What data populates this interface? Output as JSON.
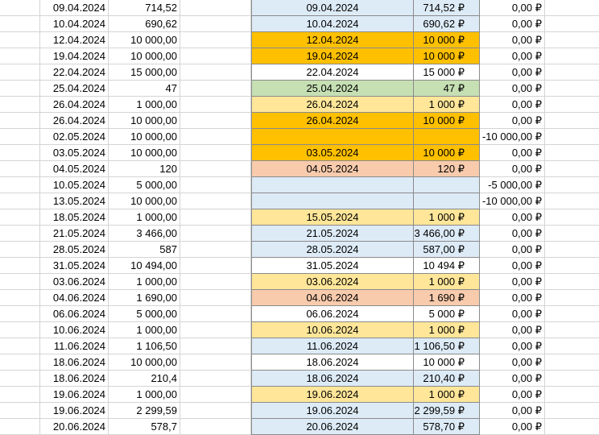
{
  "colors": {
    "blue": "#ddebf7",
    "orange": "#ffc000",
    "yellow": "#ffe699",
    "green": "#c6e0b4",
    "peach": "#f8cbad",
    "white": "#ffffff",
    "gridline": "#d4d4d4"
  },
  "top_partial": {
    "amount": ",",
    "right_date": "",
    "right_amount": "",
    "diff": ","
  },
  "rows": [
    {
      "date": "09.04.2024",
      "amount": "714,52",
      "right_date": "09.04.2024",
      "right_amount": "714,52 ₽",
      "diff": "0,00 ₽",
      "fill": "blue"
    },
    {
      "date": "10.04.2024",
      "amount": "690,62",
      "right_date": "10.04.2024",
      "right_amount": "690,62 ₽",
      "diff": "0,00 ₽",
      "fill": "blue"
    },
    {
      "date": "12.04.2024",
      "amount": "10 000,00",
      "right_date": "12.04.2024",
      "right_amount": "10 000 ₽",
      "diff": "0,00 ₽",
      "fill": "orange"
    },
    {
      "date": "19.04.2024",
      "amount": "10 000,00",
      "right_date": "19.04.2024",
      "right_amount": "10 000 ₽",
      "diff": "0,00 ₽",
      "fill": "orange"
    },
    {
      "date": "22.04.2024",
      "amount": "15 000,00",
      "right_date": "22.04.2024",
      "right_amount": "15 000 ₽",
      "diff": "0,00 ₽",
      "fill": "white"
    },
    {
      "date": "25.04.2024",
      "amount": "47",
      "right_date": "25.04.2024",
      "right_amount": "47 ₽",
      "diff": "0,00 ₽",
      "fill": "green"
    },
    {
      "date": "26.04.2024",
      "amount": "1 000,00",
      "right_date": "26.04.2024",
      "right_amount": "1 000 ₽",
      "diff": "0,00 ₽",
      "fill": "yellow"
    },
    {
      "date": "26.04.2024",
      "amount": "10 000,00",
      "right_date": "26.04.2024",
      "right_amount": "10 000 ₽",
      "diff": "0,00 ₽",
      "fill": "orange"
    },
    {
      "date": "02.05.2024",
      "amount": "10 000,00",
      "right_date": "",
      "right_amount": "",
      "diff": "-10 000,00 ₽",
      "fill": "orange"
    },
    {
      "date": "03.05.2024",
      "amount": "10 000,00",
      "right_date": "03.05.2024",
      "right_amount": "10 000 ₽",
      "diff": "0,00 ₽",
      "fill": "orange"
    },
    {
      "date": "04.05.2024",
      "amount": "120",
      "right_date": "04.05.2024",
      "right_amount": "120 ₽",
      "diff": "0,00 ₽",
      "fill": "peach"
    },
    {
      "date": "10.05.2024",
      "amount": "5 000,00",
      "right_date": "",
      "right_amount": "",
      "diff": "-5 000,00 ₽",
      "fill": "blue"
    },
    {
      "date": "13.05.2024",
      "amount": "10 000,00",
      "right_date": "",
      "right_amount": "",
      "diff": "-10 000,00 ₽",
      "fill": "blue"
    },
    {
      "date": "18.05.2024",
      "amount": "1 000,00",
      "right_date": "15.05.2024",
      "right_amount": "1 000 ₽",
      "diff": "0,00 ₽",
      "fill": "yellow"
    },
    {
      "date": "21.05.2024",
      "amount": "3 466,00",
      "right_date": "21.05.2024",
      "right_amount": "3 466,00 ₽",
      "diff": "0,00 ₽",
      "fill": "blue"
    },
    {
      "date": "28.05.2024",
      "amount": "587",
      "right_date": "28.05.2024",
      "right_amount": "587,00 ₽",
      "diff": "0,00 ₽",
      "fill": "blue"
    },
    {
      "date": "31.05.2024",
      "amount": "10 494,00",
      "right_date": "31.05.2024",
      "right_amount": "10 494 ₽",
      "diff": "0,00 ₽",
      "fill": "white"
    },
    {
      "date": "03.06.2024",
      "amount": "1 000,00",
      "right_date": "03.06.2024",
      "right_amount": "1 000 ₽",
      "diff": "0,00 ₽",
      "fill": "yellow"
    },
    {
      "date": "04.06.2024",
      "amount": "1 690,00",
      "right_date": "04.06.2024",
      "right_amount": "1 690 ₽",
      "diff": "0,00 ₽",
      "fill": "peach"
    },
    {
      "date": "06.06.2024",
      "amount": "5 000,00",
      "right_date": "06.06.2024",
      "right_amount": "5 000 ₽",
      "diff": "0,00 ₽",
      "fill": "white"
    },
    {
      "date": "10.06.2024",
      "amount": "1 000,00",
      "right_date": "10.06.2024",
      "right_amount": "1 000 ₽",
      "diff": "0,00 ₽",
      "fill": "yellow"
    },
    {
      "date": "11.06.2024",
      "amount": "1 106,50",
      "right_date": "11.06.2024",
      "right_amount": "1 106,50 ₽",
      "diff": "0,00 ₽",
      "fill": "blue"
    },
    {
      "date": "18.06.2024",
      "amount": "10 000,00",
      "right_date": "18.06.2024",
      "right_amount": "10 000 ₽",
      "diff": "0,00 ₽",
      "fill": "white"
    },
    {
      "date": "18.06.2024",
      "amount": "210,4",
      "right_date": "18.06.2024",
      "right_amount": "210,40 ₽",
      "diff": "0,00 ₽",
      "fill": "blue"
    },
    {
      "date": "19.06.2024",
      "amount": "1 000,00",
      "right_date": "19.06.2024",
      "right_amount": "1 000 ₽",
      "diff": "0,00 ₽",
      "fill": "yellow"
    },
    {
      "date": "19.06.2024",
      "amount": "2 299,59",
      "right_date": "19.06.2024",
      "right_amount": "2 299,59 ₽",
      "diff": "0,00 ₽",
      "fill": "blue"
    },
    {
      "date": "20.06.2024",
      "amount": "578,7",
      "right_date": "20.06.2024",
      "right_amount": "578,70 ₽",
      "diff": "0,00 ₽",
      "fill": "blue"
    }
  ]
}
